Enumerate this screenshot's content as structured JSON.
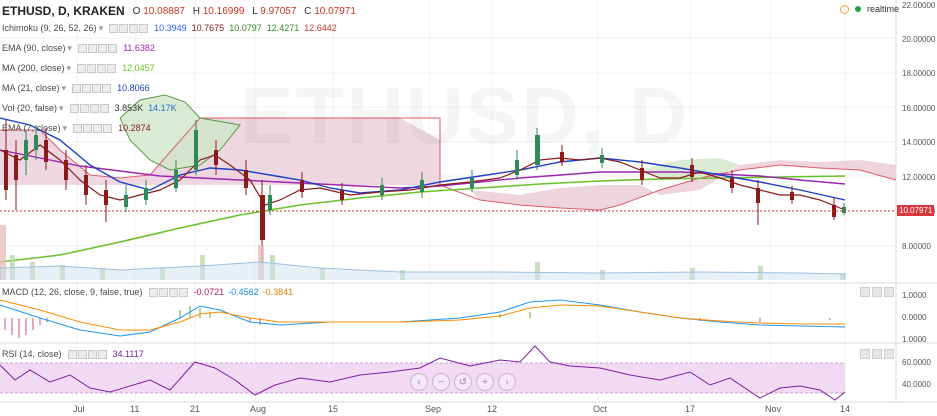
{
  "symbol_header": {
    "title": "ETHUSD, D, KRAKEN",
    "o_label": "O",
    "o_value": "10.08887",
    "h_label": "H",
    "h_value": "10.16999",
    "l_label": "L",
    "l_value": "9.97057",
    "c_label": "C",
    "c_value": "10.07971"
  },
  "realtime_label": "realtime",
  "watermark": "ETHUSD, D",
  "indicators": [
    {
      "name": "Ichimoku (9, 26, 52, 26)",
      "values": [
        {
          "v": "10.3949",
          "color": "#2962ff"
        },
        {
          "v": "10.7675",
          "color": "#8b1a1a"
        },
        {
          "v": "10.0797",
          "color": "#2e8b2e"
        },
        {
          "v": "12.4271",
          "color": "#2e8b2e"
        },
        {
          "v": "12.6442",
          "color": "#c0392b"
        }
      ]
    },
    {
      "name": "EMA (90, close)",
      "values": [
        {
          "v": "11.6382",
          "color": "#9c27b0"
        }
      ]
    },
    {
      "name": "MA (200, close)",
      "values": [
        {
          "v": "12.0457",
          "color": "#6ac12b"
        }
      ]
    },
    {
      "name": "MA (21, close)",
      "values": [
        {
          "v": "10.8066",
          "color": "#1e40c8"
        }
      ]
    },
    {
      "name": "Vol (20, false)",
      "values": [
        {
          "v": "3.853K",
          "color": "#333333"
        },
        {
          "v": "14.17K",
          "color": "#1e6fc8"
        }
      ]
    },
    {
      "name": "EMA (7, close)",
      "values": [
        {
          "v": "10.2874",
          "color": "#8b1a1a"
        }
      ]
    }
  ],
  "price_axis": [
    "22.00000",
    "20.00000",
    "18.00000",
    "16.00000",
    "14.00000",
    "12.00000",
    "10.00000",
    "8.00000"
  ],
  "current_price": "10.07971",
  "time_axis": [
    "Jul",
    "11",
    "21",
    "Aug",
    "15",
    "Sep",
    "12",
    "Oct",
    "17",
    "Nov",
    "14"
  ],
  "macd": {
    "name": "MACD (12, 26, close, 9, false, true)",
    "v1": "-0.0721",
    "v2": "-0.4562",
    "v3": "-0.3841",
    "axis": [
      "1.0000",
      "0.0000",
      "1.0000"
    ]
  },
  "rsi": {
    "name": "RSI (14, close)",
    "value": "34.1117",
    "axis": [
      "60.0000",
      "40.0000"
    ]
  },
  "colors": {
    "cloud_red_fill": "#e8c9d5",
    "cloud_green_fill": "#cfe6c8",
    "rsi_band": "#f2daf5",
    "macd_fast": "#2196f3",
    "macd_slow": "#ff8c00",
    "rsi_line": "#7b1fa2",
    "candle_up": "#2e8b57",
    "candle_down": "#8b1a1a"
  },
  "nav_icons": [
    "zoom-out-icon",
    "zoom-in-icon",
    "reset-icon",
    "scroll-left-icon",
    "scroll-right-icon"
  ]
}
